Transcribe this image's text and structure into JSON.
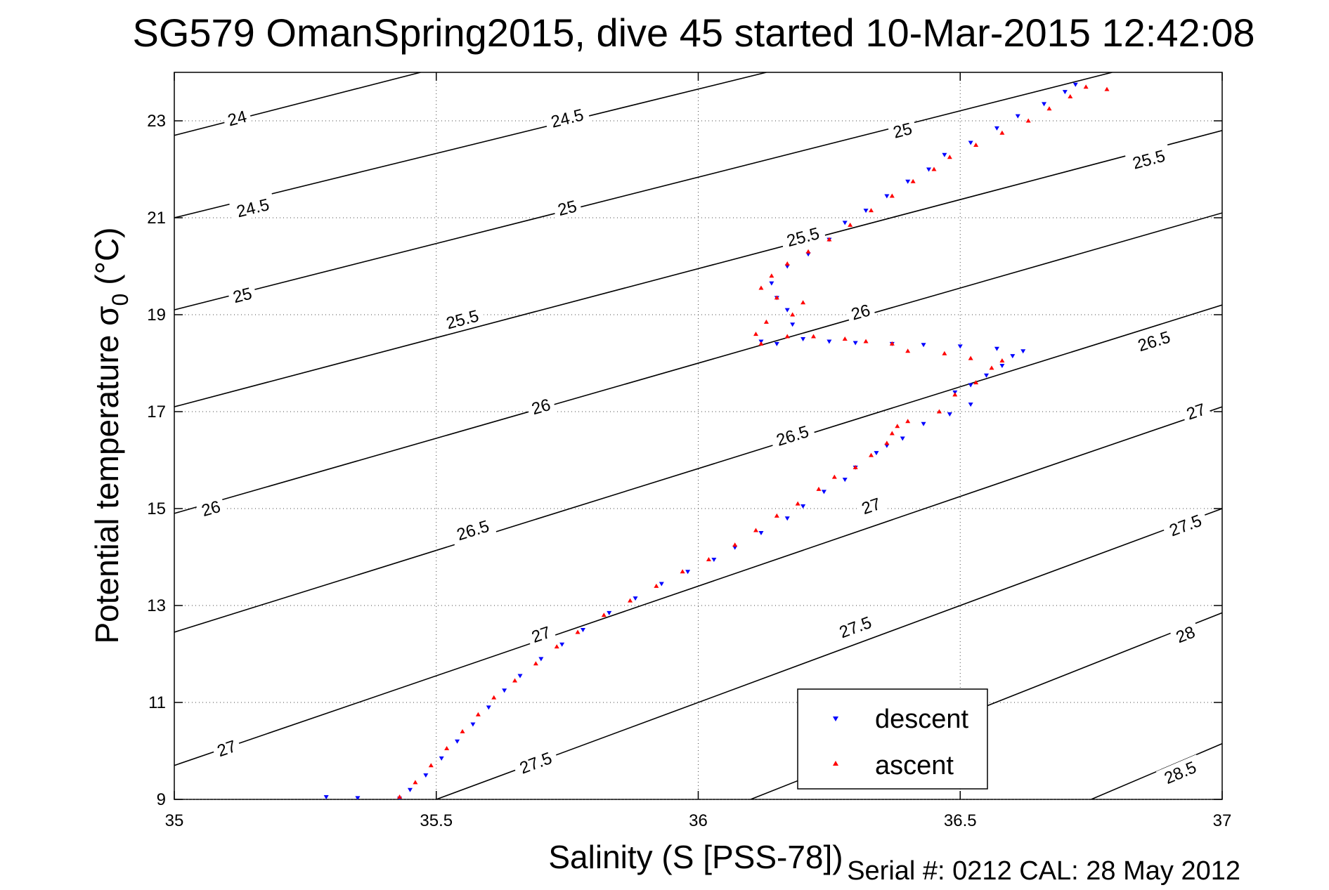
{
  "chart_data": {
    "type": "scatter",
    "title": "SG579 OmanSpring2015, dive 45 started 10-Mar-2015 12:42:08",
    "xlabel": "Salinity (S [PSS-78])",
    "ylabel_main": "Potential temperature σ",
    "ylabel_sub": "0",
    "ylabel_unit": "(°C)",
    "footer": "Serial #: 0212  CAL: 28 May 2012",
    "xlim": [
      35,
      37
    ],
    "ylim": [
      9,
      24
    ],
    "xticks": [
      35,
      35.5,
      36,
      36.5,
      37
    ],
    "yticks": [
      9,
      11,
      13,
      15,
      17,
      19,
      21,
      23
    ],
    "grid": "dotted",
    "legend_position": "bottom-right",
    "contours": [
      {
        "label": "24",
        "points": [
          [
            35,
            22.7
          ],
          [
            35.47,
            24
          ]
        ],
        "labels_at": [
          [
            35.12,
            23.05
          ]
        ]
      },
      {
        "label": "24.5",
        "points": [
          [
            35,
            21.0
          ],
          [
            36.13,
            24
          ]
        ],
        "labels_at": [
          [
            35.15,
            21.2
          ],
          [
            35.75,
            23.05
          ]
        ]
      },
      {
        "label": "25",
        "points": [
          [
            35,
            19.1
          ],
          [
            36.79,
            24
          ]
        ],
        "labels_at": [
          [
            35.13,
            19.4
          ],
          [
            35.75,
            21.2
          ],
          [
            36.39,
            22.8
          ]
        ]
      },
      {
        "label": "25.5",
        "points": [
          [
            35,
            17.1
          ],
          [
            37,
            22.8
          ]
        ],
        "labels_at": [
          [
            35.55,
            18.9
          ],
          [
            36.2,
            20.6
          ],
          [
            36.86,
            22.2
          ]
        ]
      },
      {
        "label": "26",
        "points": [
          [
            35,
            14.9
          ],
          [
            37,
            21.1
          ]
        ],
        "labels_at": [
          [
            35.07,
            15.0
          ],
          [
            35.7,
            17.1
          ],
          [
            36.31,
            19.05
          ]
        ]
      },
      {
        "label": "26.5",
        "points": [
          [
            35,
            12.45
          ],
          [
            37,
            19.2
          ]
        ],
        "labels_at": [
          [
            35.57,
            14.55
          ],
          [
            36.18,
            16.5
          ],
          [
            36.87,
            18.45
          ]
        ]
      },
      {
        "label": "27",
        "points": [
          [
            35,
            9.7
          ],
          [
            37,
            17.1
          ]
        ],
        "labels_at": [
          [
            35.1,
            10.05
          ],
          [
            35.7,
            12.4
          ],
          [
            36.33,
            15.05
          ],
          [
            36.95,
            17.0
          ]
        ]
      },
      {
        "label": "27.5",
        "points": [
          [
            35.5,
            9
          ],
          [
            37,
            15.0
          ]
        ],
        "labels_at": [
          [
            35.69,
            9.75
          ],
          [
            36.3,
            12.55
          ],
          [
            36.93,
            14.65
          ]
        ]
      },
      {
        "label": "28",
        "points": [
          [
            36.1,
            9
          ],
          [
            37,
            12.85
          ]
        ],
        "labels_at": [
          [
            36.93,
            12.4
          ]
        ]
      },
      {
        "label": "28.5",
        "points": [
          [
            36.75,
            9
          ],
          [
            37,
            10.15
          ]
        ],
        "labels_at": [
          [
            36.92,
            9.55
          ]
        ]
      }
    ],
    "series": [
      {
        "name": "descent",
        "color": "#0000ff",
        "marker": "triangle-down",
        "points": [
          [
            35.29,
            9.05
          ],
          [
            35.35,
            9.03
          ],
          [
            35.43,
            9.02
          ],
          [
            35.45,
            9.2
          ],
          [
            35.48,
            9.5
          ],
          [
            35.51,
            9.85
          ],
          [
            35.54,
            10.2
          ],
          [
            35.57,
            10.55
          ],
          [
            35.6,
            10.9
          ],
          [
            35.63,
            11.25
          ],
          [
            35.66,
            11.55
          ],
          [
            35.7,
            11.9
          ],
          [
            35.74,
            12.2
          ],
          [
            35.78,
            12.5
          ],
          [
            35.83,
            12.85
          ],
          [
            35.88,
            13.15
          ],
          [
            35.93,
            13.45
          ],
          [
            35.98,
            13.7
          ],
          [
            36.03,
            13.95
          ],
          [
            36.07,
            14.2
          ],
          [
            36.12,
            14.5
          ],
          [
            36.17,
            14.8
          ],
          [
            36.2,
            15.05
          ],
          [
            36.24,
            15.35
          ],
          [
            36.28,
            15.6
          ],
          [
            36.3,
            15.85
          ],
          [
            36.34,
            16.15
          ],
          [
            36.36,
            16.3
          ],
          [
            36.39,
            16.45
          ],
          [
            36.43,
            16.75
          ],
          [
            36.48,
            16.95
          ],
          [
            36.52,
            17.15
          ],
          [
            36.49,
            17.4
          ],
          [
            36.52,
            17.55
          ],
          [
            36.55,
            17.75
          ],
          [
            36.58,
            17.95
          ],
          [
            36.6,
            18.15
          ],
          [
            36.62,
            18.25
          ],
          [
            36.57,
            18.3
          ],
          [
            36.5,
            18.35
          ],
          [
            36.43,
            18.38
          ],
          [
            36.37,
            18.4
          ],
          [
            36.3,
            18.42
          ],
          [
            36.25,
            18.45
          ],
          [
            36.2,
            18.5
          ],
          [
            36.15,
            18.4
          ],
          [
            36.12,
            18.45
          ],
          [
            36.18,
            18.8
          ],
          [
            36.17,
            19.1
          ],
          [
            36.15,
            19.35
          ],
          [
            36.14,
            19.65
          ],
          [
            36.17,
            20.0
          ],
          [
            36.21,
            20.25
          ],
          [
            36.25,
            20.55
          ],
          [
            36.28,
            20.9
          ],
          [
            36.32,
            21.15
          ],
          [
            36.36,
            21.45
          ],
          [
            36.4,
            21.75
          ],
          [
            36.44,
            22.0
          ],
          [
            36.47,
            22.3
          ],
          [
            36.52,
            22.55
          ],
          [
            36.57,
            22.85
          ],
          [
            36.61,
            23.1
          ],
          [
            36.66,
            23.35
          ],
          [
            36.7,
            23.6
          ],
          [
            36.72,
            23.75
          ]
        ]
      },
      {
        "name": "ascent",
        "color": "#ff0000",
        "marker": "triangle-up",
        "points": [
          [
            35.43,
            9.05
          ],
          [
            35.46,
            9.35
          ],
          [
            35.49,
            9.7
          ],
          [
            35.52,
            10.05
          ],
          [
            35.55,
            10.4
          ],
          [
            35.58,
            10.75
          ],
          [
            35.61,
            11.1
          ],
          [
            35.65,
            11.45
          ],
          [
            35.69,
            11.8
          ],
          [
            35.73,
            12.15
          ],
          [
            35.77,
            12.45
          ],
          [
            35.82,
            12.8
          ],
          [
            35.87,
            13.1
          ],
          [
            35.92,
            13.4
          ],
          [
            35.97,
            13.7
          ],
          [
            36.02,
            13.95
          ],
          [
            36.07,
            14.25
          ],
          [
            36.11,
            14.55
          ],
          [
            36.15,
            14.85
          ],
          [
            36.19,
            15.1
          ],
          [
            36.23,
            15.4
          ],
          [
            36.26,
            15.65
          ],
          [
            36.3,
            15.85
          ],
          [
            36.33,
            16.1
          ],
          [
            36.36,
            16.35
          ],
          [
            36.37,
            16.55
          ],
          [
            36.38,
            16.7
          ],
          [
            36.4,
            16.8
          ],
          [
            36.46,
            17.0
          ],
          [
            36.49,
            17.35
          ],
          [
            36.53,
            17.6
          ],
          [
            36.56,
            17.9
          ],
          [
            36.58,
            18.05
          ],
          [
            36.52,
            18.1
          ],
          [
            36.47,
            18.2
          ],
          [
            36.4,
            18.25
          ],
          [
            36.37,
            18.4
          ],
          [
            36.32,
            18.45
          ],
          [
            36.28,
            18.5
          ],
          [
            36.22,
            18.55
          ],
          [
            36.17,
            18.55
          ],
          [
            36.12,
            18.4
          ],
          [
            36.11,
            18.6
          ],
          [
            36.13,
            18.85
          ],
          [
            36.18,
            19.0
          ],
          [
            36.2,
            19.25
          ],
          [
            36.15,
            19.35
          ],
          [
            36.12,
            19.55
          ],
          [
            36.14,
            19.8
          ],
          [
            36.17,
            20.05
          ],
          [
            36.21,
            20.3
          ],
          [
            36.25,
            20.55
          ],
          [
            36.29,
            20.85
          ],
          [
            36.33,
            21.15
          ],
          [
            36.37,
            21.45
          ],
          [
            36.41,
            21.75
          ],
          [
            36.45,
            22.0
          ],
          [
            36.48,
            22.25
          ],
          [
            36.53,
            22.5
          ],
          [
            36.58,
            22.75
          ],
          [
            36.63,
            23.0
          ],
          [
            36.67,
            23.25
          ],
          [
            36.71,
            23.5
          ],
          [
            36.74,
            23.7
          ],
          [
            36.78,
            23.65
          ]
        ]
      }
    ]
  }
}
